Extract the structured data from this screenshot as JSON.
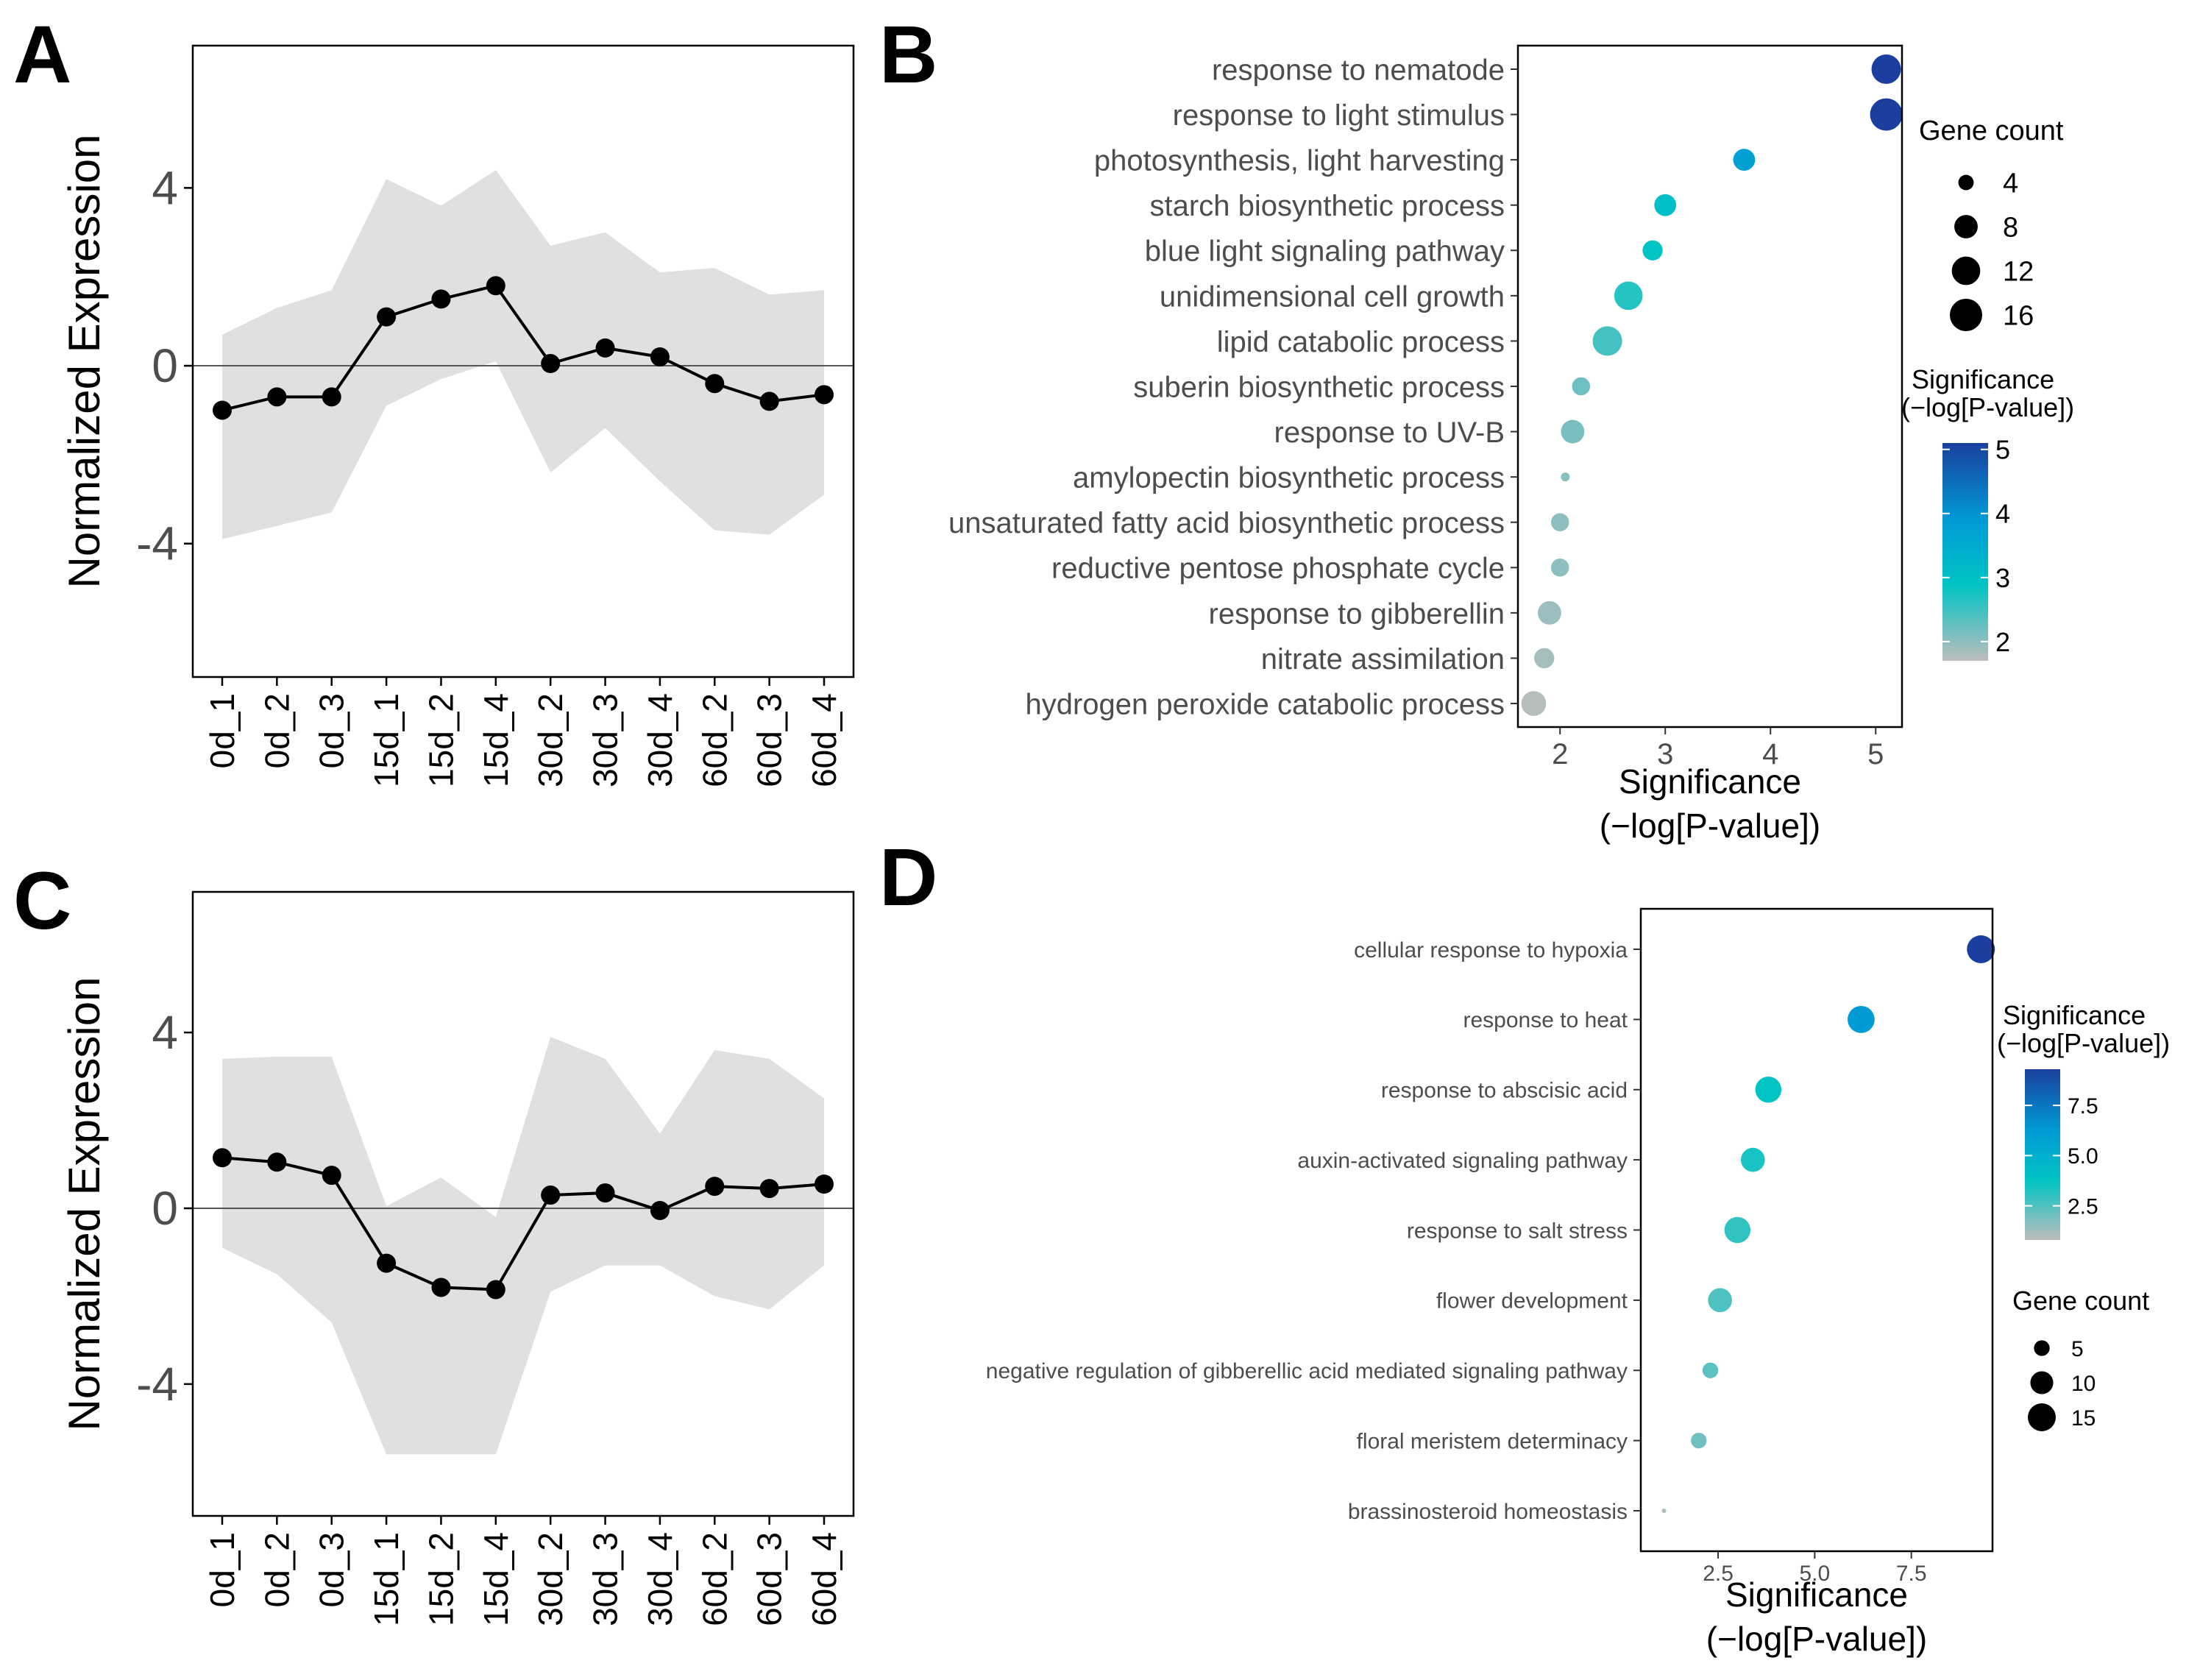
{
  "panels": {
    "a": "A",
    "b": "B",
    "c": "C",
    "d": "D"
  },
  "chart_data": [
    {
      "id": "A",
      "type": "line",
      "ylabel": "Normalized Expression",
      "xlabel": "",
      "ylim": [
        -7,
        7.2
      ],
      "yticks": [
        4,
        0,
        -4
      ],
      "ytick_labels": [
        "4",
        "0",
        "-4"
      ],
      "categories": [
        "0d_1",
        "0d_2",
        "0d_3",
        "15d_1",
        "15d_2",
        "15d_4",
        "30d_2",
        "30d_3",
        "30d_4",
        "60d_2",
        "60d_3",
        "60d_4"
      ],
      "values": [
        -1.0,
        -0.7,
        -0.7,
        1.1,
        1.5,
        1.8,
        0.05,
        0.4,
        0.2,
        -0.4,
        -0.8,
        -0.65
      ],
      "band_upper": [
        0.7,
        1.3,
        1.7,
        4.2,
        3.6,
        4.4,
        2.7,
        3.0,
        2.1,
        2.2,
        1.6,
        1.7
      ],
      "band_lower": [
        -3.9,
        -3.6,
        -3.3,
        -0.9,
        -0.3,
        0.1,
        -2.4,
        -1.4,
        -2.6,
        -3.7,
        -3.8,
        -2.9
      ],
      "hline": 0,
      "colors": {
        "line": "#000000",
        "band": "#e0e0e0"
      }
    },
    {
      "id": "B",
      "type": "scatter",
      "title": "",
      "xlabel": "Significance (−log[P-value])",
      "xlabel_lines": [
        "Significance",
        "(−log[P-value])"
      ],
      "xlim": [
        1.6,
        5.25
      ],
      "xticks": [
        2,
        3,
        4,
        5
      ],
      "xtick_labels": [
        "2",
        "3",
        "4",
        "5"
      ],
      "categories": [
        "response to nematode",
        "response to light stimulus",
        "photosynthesis, light harvesting",
        "starch biosynthetic process",
        "blue light signaling pathway",
        "unidimensional cell growth",
        "lipid catabolic process",
        "suberin biosynthetic process",
        "response to UV-B",
        "amylopectin biosynthetic process",
        "unsaturated fatty acid biosynthetic process",
        "reductive pentose phosphate cycle",
        "response to gibberellin",
        "nitrate assimilation",
        "hydrogen peroxide catabolic process"
      ],
      "values": [
        5.1,
        5.1,
        3.75,
        3.0,
        2.88,
        2.65,
        2.45,
        2.2,
        2.12,
        2.05,
        2.0,
        2.0,
        1.9,
        1.85,
        1.75
      ],
      "gene_counts": [
        13,
        16,
        7,
        7,
        6,
        12,
        13,
        5,
        8,
        3,
        5,
        5,
        8,
        6,
        9
      ],
      "size_legend": {
        "title": "Gene count",
        "values": [
          4,
          8,
          12,
          16
        ],
        "labels": [
          "4",
          "8",
          "12",
          "16"
        ]
      },
      "color_legend": {
        "title_lines": [
          "Significance",
          "(−log[P-value])"
        ],
        "range": [
          1.7,
          5.1
        ],
        "ticks": [
          5,
          4,
          3,
          2
        ],
        "tick_labels": [
          "5",
          "4",
          "3",
          "2"
        ],
        "colors": [
          "#bdbdbd",
          "#00c4c4",
          "#0099d6",
          "#1a3f9e"
        ]
      }
    },
    {
      "id": "C",
      "type": "line",
      "ylabel": "Normalized Expression",
      "xlabel": "",
      "ylim": [
        -7,
        7.2
      ],
      "yticks": [
        4,
        0,
        -4
      ],
      "ytick_labels": [
        "4",
        "0",
        "-4"
      ],
      "categories": [
        "0d_1",
        "0d_2",
        "0d_3",
        "15d_1",
        "15d_2",
        "15d_4",
        "30d_2",
        "30d_3",
        "30d_4",
        "60d_2",
        "60d_3",
        "60d_4"
      ],
      "values": [
        1.15,
        1.05,
        0.75,
        -1.25,
        -1.8,
        -1.85,
        0.3,
        0.35,
        -0.05,
        0.5,
        0.45,
        0.55
      ],
      "band_upper": [
        3.4,
        3.45,
        3.45,
        0.05,
        0.7,
        -0.2,
        3.9,
        3.4,
        1.7,
        3.6,
        3.4,
        2.5
      ],
      "band_lower": [
        -0.9,
        -1.5,
        -2.6,
        -5.6,
        -5.6,
        -5.6,
        -1.9,
        -1.3,
        -1.3,
        -2.0,
        -2.3,
        -1.3
      ],
      "hline": 0,
      "colors": {
        "line": "#000000",
        "band": "#e0e0e0"
      }
    },
    {
      "id": "D",
      "type": "scatter",
      "title": "",
      "xlabel": "Significance (−log[P-value])",
      "xlabel_lines": [
        "Significance",
        "(−log[P-value])"
      ],
      "xlim": [
        0.5,
        9.6
      ],
      "xticks": [
        2.5,
        5.0,
        7.5
      ],
      "xtick_labels": [
        "2.5",
        "5.0",
        "7.5"
      ],
      "categories": [
        "cellular response to hypoxia",
        "response to heat",
        "response to abscisic acid",
        "auxin-activated signaling pathway",
        "response to salt stress",
        "flower development",
        "negative regulation of gibberellic acid mediated signaling pathway",
        "floral meristem determinacy",
        "brassinosteroid homeostasis"
      ],
      "values": [
        9.3,
        6.2,
        3.8,
        3.4,
        3.0,
        2.55,
        2.3,
        2.0,
        1.1
      ],
      "gene_counts": [
        15,
        14,
        13,
        11,
        13,
        11,
        5,
        5,
        2
      ],
      "size_legend": {
        "title": "Gene count",
        "values": [
          5,
          10,
          15
        ],
        "labels": [
          "5",
          "10",
          "15"
        ]
      },
      "color_legend": {
        "title_lines": [
          "Significance",
          "(−log[P-value])"
        ],
        "range": [
          0.8,
          9.3
        ],
        "ticks": [
          7.5,
          5.0,
          2.5
        ],
        "tick_labels": [
          "7.5",
          "5.0",
          "2.5"
        ],
        "colors": [
          "#bdbdbd",
          "#00c4c4",
          "#0099d6",
          "#1a3f9e"
        ]
      }
    }
  ]
}
